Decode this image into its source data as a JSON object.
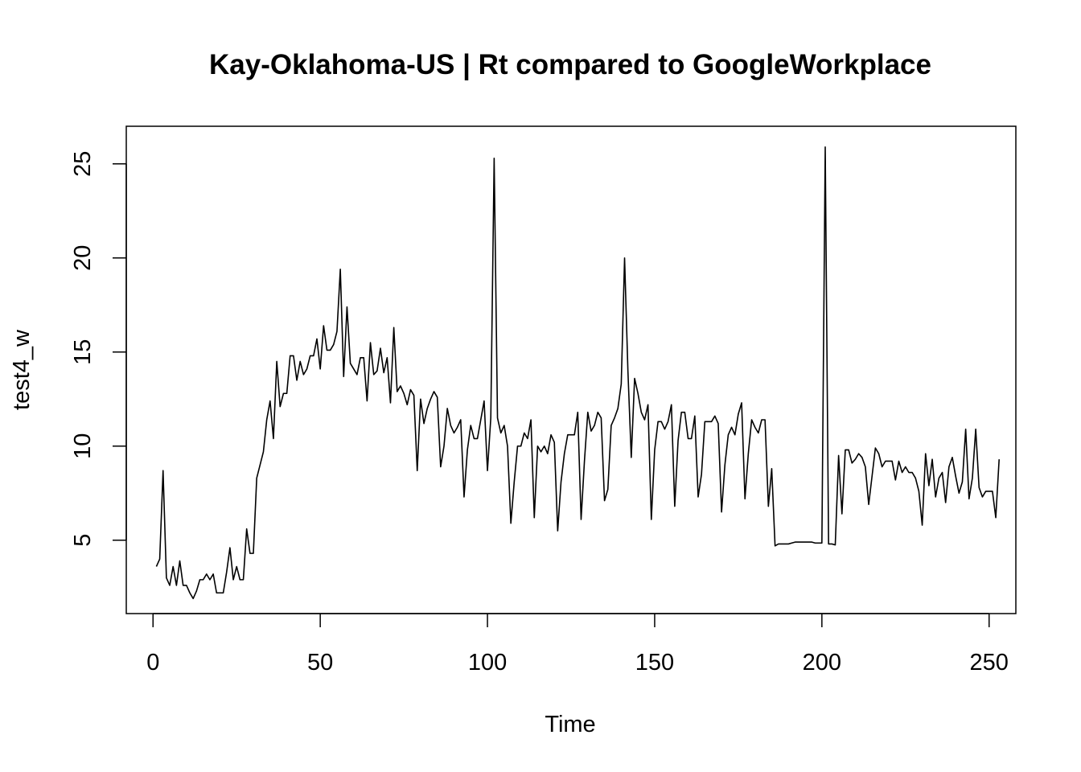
{
  "chart_data": {
    "type": "line",
    "title": "Kay-Oklahoma-US | Rt compared to GoogleWorkplace",
    "xlabel": "Time",
    "ylabel": "test4_w",
    "xlim": [
      -8,
      258
    ],
    "ylim": [
      1.1,
      27.0
    ],
    "x_ticks": [
      0,
      50,
      100,
      150,
      200,
      250
    ],
    "y_ticks": [
      5,
      10,
      15,
      20,
      25
    ],
    "grid": false,
    "legend": "none",
    "line_color": "#000000",
    "x_start": 1,
    "series": [
      {
        "values": [
          3.6,
          4.0,
          8.7,
          3.0,
          2.6,
          3.6,
          2.6,
          3.9,
          2.6,
          2.6,
          2.2,
          1.9,
          2.3,
          2.9,
          2.9,
          3.2,
          2.9,
          3.2,
          2.2,
          2.2,
          2.2,
          3.3,
          4.6,
          2.9,
          3.6,
          2.9,
          2.9,
          5.6,
          4.3,
          4.3,
          8.3,
          9.0,
          9.7,
          11.4,
          12.4,
          10.4,
          14.5,
          12.1,
          12.8,
          12.8,
          14.8,
          14.8,
          13.5,
          14.5,
          13.8,
          14.1,
          14.8,
          14.8,
          15.7,
          14.1,
          16.4,
          15.1,
          15.1,
          15.4,
          16.1,
          19.4,
          13.7,
          17.4,
          14.4,
          14.1,
          13.8,
          14.7,
          14.7,
          12.4,
          15.5,
          13.8,
          14.0,
          15.2,
          13.9,
          14.7,
          12.3,
          16.3,
          12.9,
          13.2,
          12.8,
          12.2,
          13.0,
          12.7,
          8.7,
          12.5,
          11.2,
          12.0,
          12.5,
          12.9,
          12.6,
          8.9,
          10.0,
          12.0,
          11.1,
          10.7,
          11.0,
          11.4,
          7.3,
          9.8,
          11.1,
          10.4,
          10.4,
          11.4,
          12.4,
          8.7,
          11.5,
          25.3,
          11.5,
          10.7,
          11.1,
          10.0,
          5.9,
          8.1,
          10.0,
          10.0,
          10.7,
          10.4,
          11.4,
          6.2,
          10.0,
          9.7,
          10.0,
          9.6,
          10.6,
          10.2,
          5.5,
          8.1,
          9.6,
          10.6,
          10.6,
          10.6,
          11.8,
          6.1,
          9.2,
          11.8,
          10.8,
          11.1,
          11.8,
          11.5,
          7.1,
          7.7,
          11.1,
          11.5,
          12.0,
          13.3,
          20.0,
          14.0,
          9.4,
          13.6,
          12.8,
          11.8,
          11.4,
          12.2,
          6.1,
          9.8,
          11.3,
          11.3,
          10.9,
          11.3,
          12.2,
          6.8,
          10.3,
          11.8,
          11.8,
          10.4,
          10.4,
          11.6,
          7.3,
          8.5,
          11.3,
          11.3,
          11.3,
          11.6,
          11.2,
          6.5,
          9.0,
          10.6,
          11.0,
          10.6,
          11.7,
          12.3,
          7.2,
          9.6,
          11.4,
          11.0,
          10.7,
          11.4,
          11.4,
          6.8,
          8.8,
          4.7,
          4.8,
          4.8,
          4.8,
          4.8,
          4.85,
          4.9,
          4.9,
          4.9,
          4.9,
          4.9,
          4.9,
          4.85,
          4.85,
          4.85,
          25.9,
          4.8,
          4.8,
          4.75,
          9.5,
          6.4,
          9.8,
          9.8,
          9.1,
          9.3,
          9.6,
          9.4,
          8.9,
          6.9,
          8.4,
          9.9,
          9.6,
          8.9,
          9.2,
          9.2,
          9.2,
          8.2,
          9.2,
          8.6,
          8.9,
          8.6,
          8.6,
          8.3,
          7.6,
          5.8,
          9.6,
          7.9,
          9.3,
          7.3,
          8.3,
          8.6,
          7.0,
          8.9,
          9.4,
          8.4,
          7.5,
          8.1,
          10.9,
          7.2,
          8.3,
          10.9,
          7.8,
          7.3,
          7.6,
          7.6,
          7.6,
          6.2,
          9.3
        ]
      }
    ]
  }
}
